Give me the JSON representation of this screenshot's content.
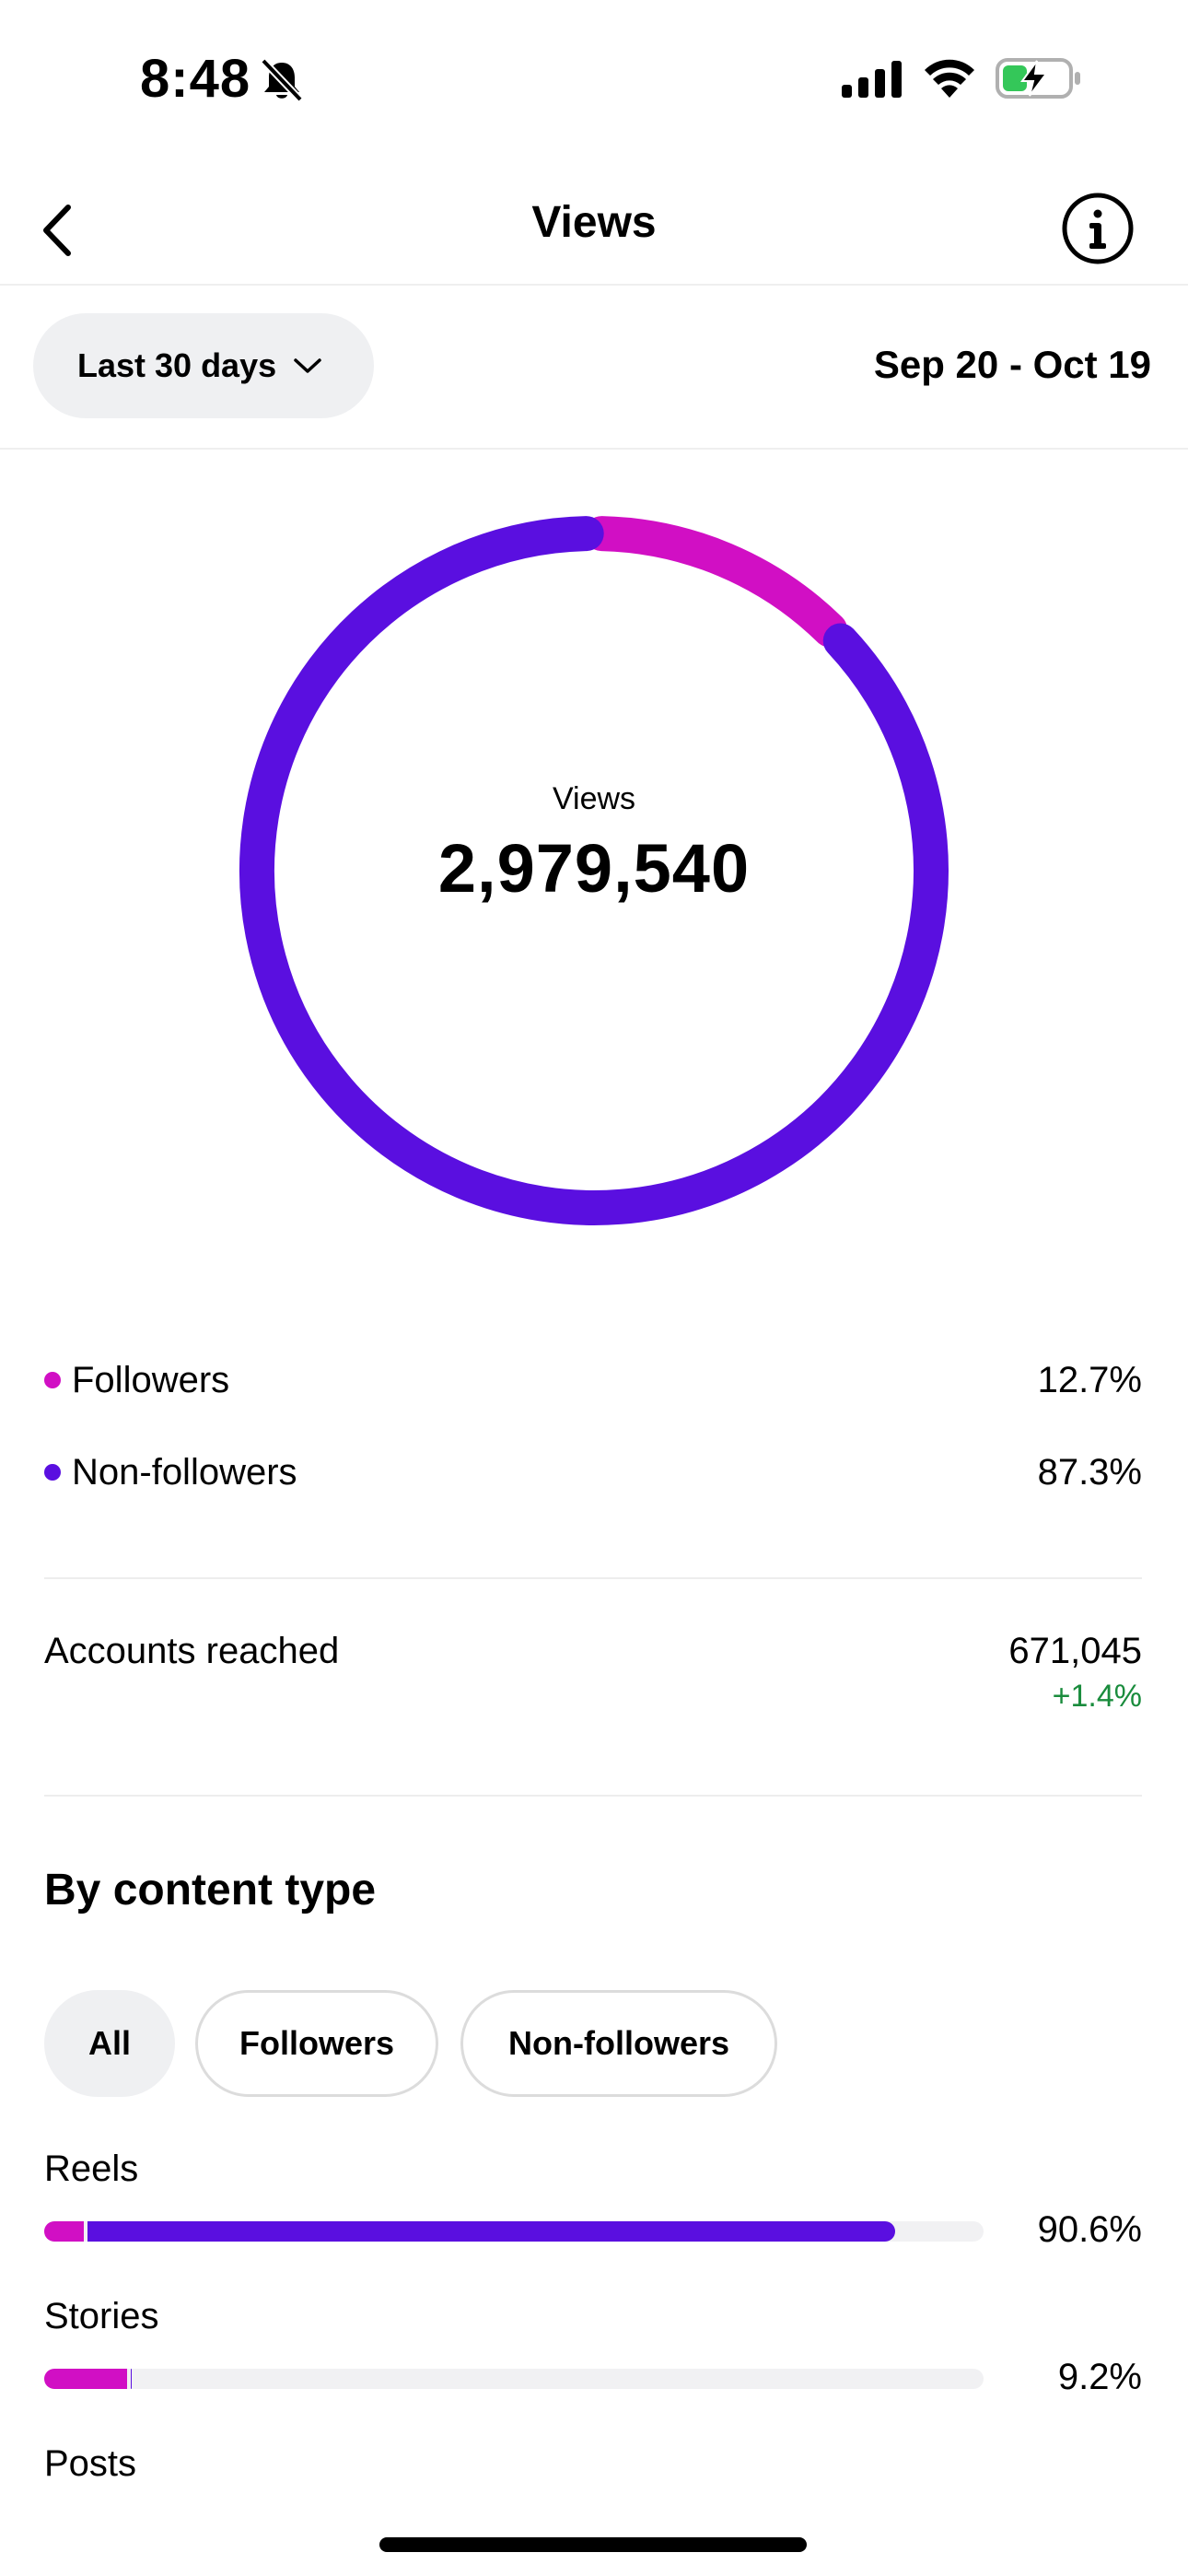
{
  "status_bar": {
    "time": "8:48"
  },
  "nav": {
    "title": "Views"
  },
  "filter": {
    "range_label": "Last 30 days",
    "date_range": "Sep 20 - Oct 19"
  },
  "colors": {
    "followers": "#D10FC4",
    "non_followers": "#5A0FE0",
    "positive_change": "#1A8C3D",
    "track": "#F1F1F3"
  },
  "summary": {
    "caption": "Views",
    "total": "2,979,540"
  },
  "chart_data": {
    "type": "pie",
    "categories": [
      "Followers",
      "Non-followers"
    ],
    "values": [
      12.7,
      87.3
    ]
  },
  "legend": [
    {
      "label": "Followers",
      "value": "12.7%"
    },
    {
      "label": "Non-followers",
      "value": "87.3%"
    }
  ],
  "reach": {
    "label": "Accounts reached",
    "value": "671,045",
    "change": "+1.4%"
  },
  "content_type": {
    "title": "By content type",
    "tabs": [
      "All",
      "Followers",
      "Non-followers"
    ],
    "selected_tab": "All",
    "items": [
      {
        "label": "Reels",
        "value": "90.6%",
        "followers_share": 4.2,
        "non_followers_share": 86.4
      },
      {
        "label": "Stories",
        "value": "9.2%",
        "followers_share": 8.8,
        "non_followers_share": 0.4
      },
      {
        "label": "Posts"
      }
    ]
  }
}
